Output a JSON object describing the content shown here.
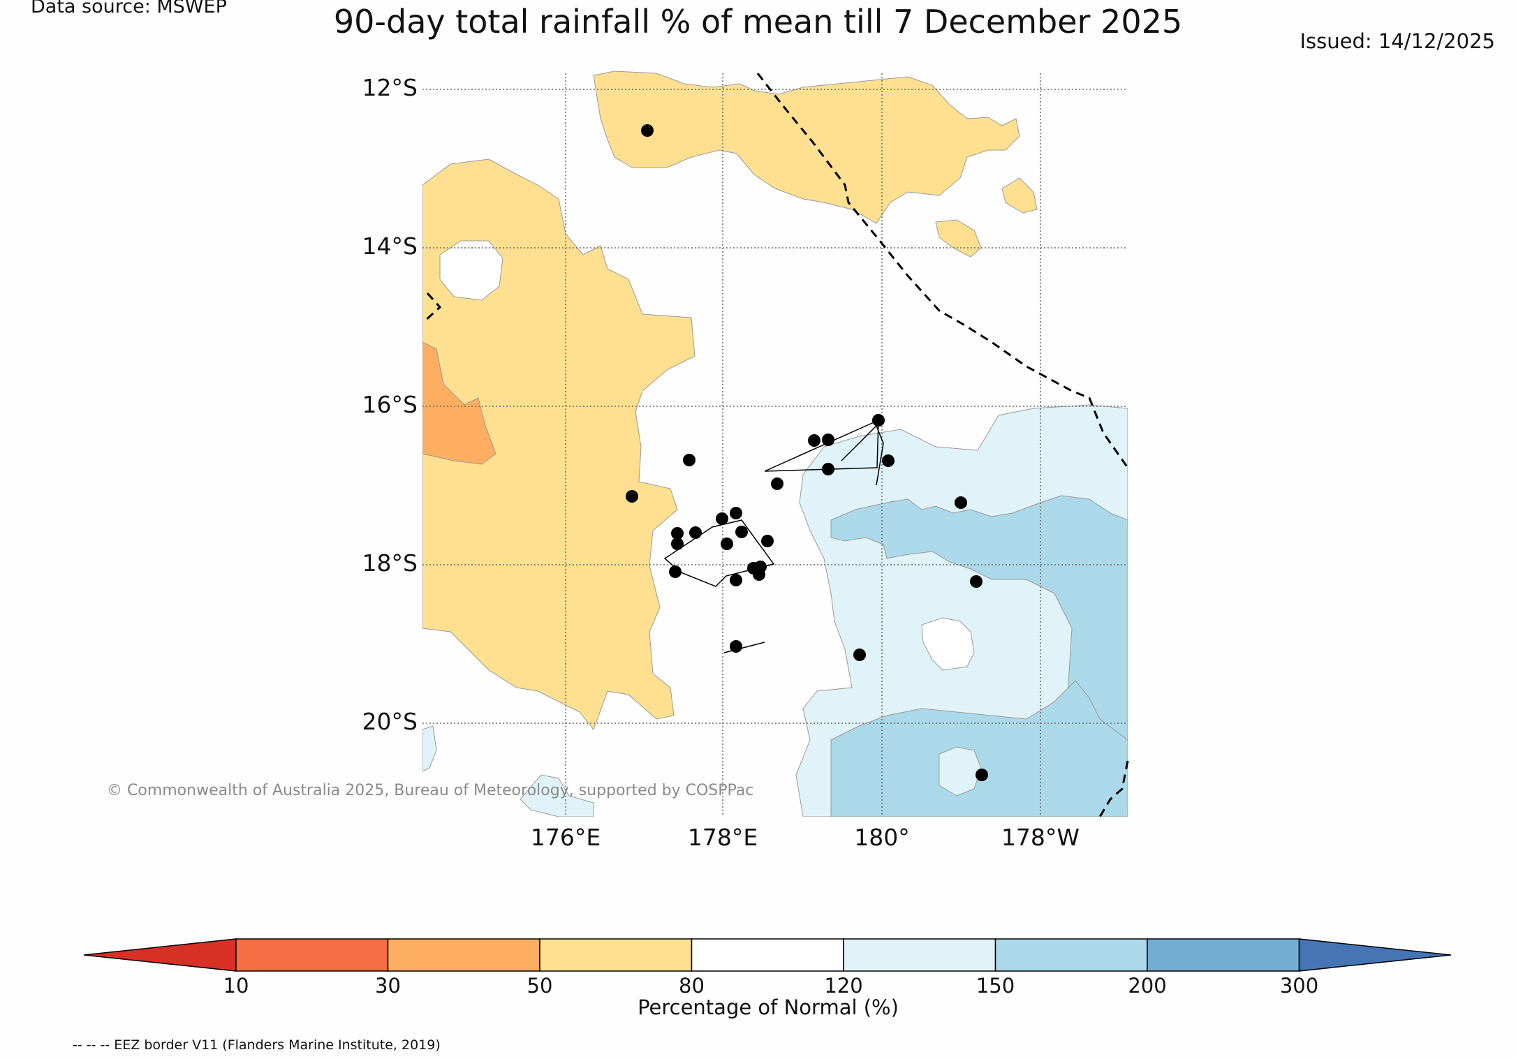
{
  "header": {
    "data_source": "Data source: MSWEP",
    "title": "90-day total rainfall % of mean till 7 December 2025",
    "issued": "Issued: 14/12/2025"
  },
  "map": {
    "lat_labels": [
      "12°S",
      "14°S",
      "16°S",
      "18°S",
      "20°S"
    ],
    "lon_labels": [
      "176°E",
      "178°E",
      "180°",
      "178°W"
    ],
    "copyright": "© Commonwealth of Australia 2025, Bureau of Meteorology, supported by COSPPac",
    "station_count": 27
  },
  "colorbar": {
    "ticks": [
      "10",
      "30",
      "50",
      "80",
      "120",
      "150",
      "200",
      "300"
    ],
    "colors": [
      "#d73027",
      "#f46d43",
      "#fdae61",
      "#fee090",
      "#ffffff",
      "#e0f3f8",
      "#abd9e9",
      "#74add1",
      "#4575b4"
    ],
    "label": "Percentage of Normal (%)"
  },
  "legend": {
    "eez": "-- -- -- EEZ border V11 (Flanders Marine Institute, 2019)"
  }
}
